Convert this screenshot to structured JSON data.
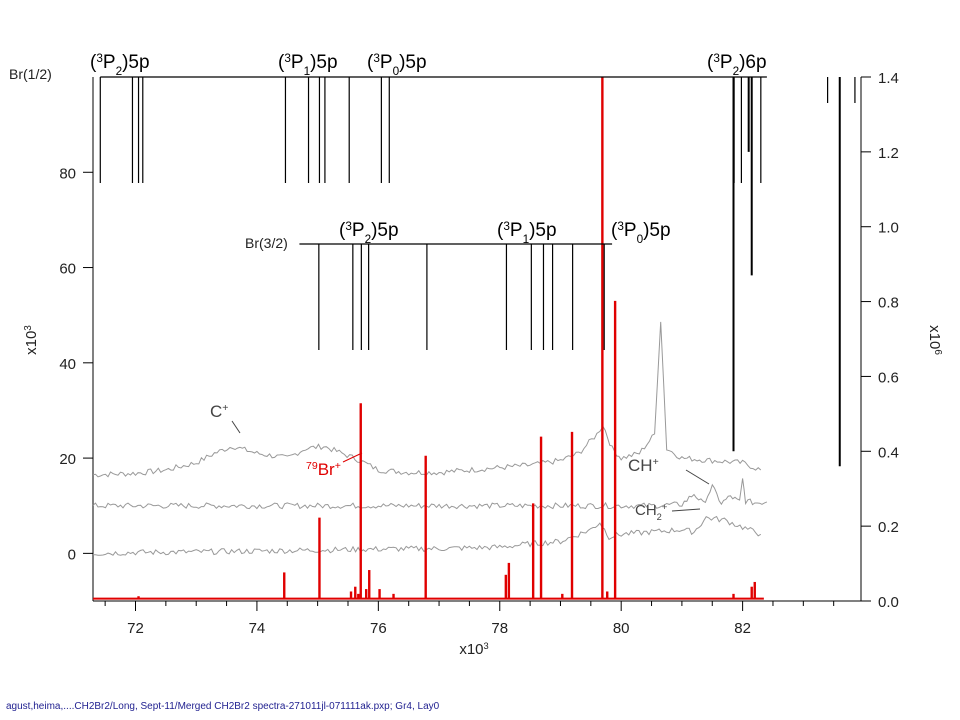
{
  "chart_data": {
    "type": "line",
    "x_axis": {
      "range": [
        71.3,
        83.95
      ],
      "ticks": [
        72,
        74,
        76,
        78,
        80,
        82
      ],
      "label": "x10",
      "label_exp": "3"
    },
    "left_axis": {
      "range": [
        -10,
        100
      ],
      "ticks": [
        0,
        20,
        40,
        60,
        80
      ],
      "label": "x10",
      "label_exp": "3"
    },
    "right_axis": {
      "range": [
        0,
        1.4
      ],
      "ticks": [
        "0.0",
        "0.2",
        "0.4",
        "0.6",
        "0.8",
        "1.0",
        "1.2",
        "1.4"
      ],
      "label": "x10",
      "label_exp": "6"
    },
    "series": [
      {
        "name": "C+",
        "color": "#999999",
        "axis": "left",
        "x": [
          71.3,
          72.0,
          72.5,
          73.0,
          73.3,
          73.6,
          74.0,
          74.5,
          74.8,
          75.1,
          75.4,
          75.7,
          76.0,
          76.5,
          77.0,
          77.5,
          78.0,
          78.5,
          79.0,
          79.3,
          79.6,
          79.7,
          79.85,
          80.0,
          80.3,
          80.55,
          80.65,
          80.75,
          81.0,
          81.5,
          82.0,
          82.3
        ],
        "y": [
          16.5,
          16.8,
          17.5,
          19,
          21,
          22.5,
          21,
          20,
          22,
          22.5,
          21,
          19.5,
          17.5,
          17,
          17,
          17.5,
          18,
          18.5,
          19.5,
          21,
          25,
          27,
          22,
          20,
          21,
          25,
          49,
          22,
          20,
          19.5,
          19,
          17.5
        ]
      },
      {
        "name": "CH+",
        "color": "#999999",
        "axis": "left",
        "x": [
          71.3,
          72.0,
          73.0,
          74.0,
          75.0,
          76.0,
          77.0,
          78.0,
          79.0,
          79.7,
          80.0,
          80.5,
          81.0,
          81.2,
          81.35,
          81.5,
          81.65,
          81.8,
          81.95,
          82.0,
          82.05,
          82.2,
          82.4
        ],
        "y": [
          10,
          10,
          10,
          10,
          10,
          10,
          10,
          10,
          10,
          10,
          10,
          10,
          10.3,
          12.5,
          10.4,
          14,
          10.5,
          12,
          10.8,
          15.5,
          11,
          10.6,
          10.8
        ]
      },
      {
        "name": "CH2+",
        "color": "#999999",
        "axis": "left",
        "x": [
          71.3,
          72.0,
          73.0,
          74.0,
          75.0,
          76.0,
          77.0,
          78.0,
          78.5,
          79.0,
          79.5,
          79.65,
          79.8,
          80.0,
          80.5,
          81.0,
          81.2,
          81.4,
          81.7,
          82.0,
          82.3
        ],
        "y": [
          0,
          0.2,
          0.3,
          0.5,
          0.7,
          0.9,
          1,
          1.3,
          2,
          2.5,
          5,
          6.5,
          3.5,
          4,
          4.5,
          5,
          4.5,
          7.5,
          7,
          5.5,
          4
        ]
      },
      {
        "name": "79Br+",
        "color": "#e00000",
        "axis": "left",
        "baseline": -9.5,
        "peaks": [
          [
            72.05,
            -9
          ],
          [
            74.45,
            -4
          ],
          [
            75.03,
            7.5
          ],
          [
            75.55,
            -8
          ],
          [
            75.62,
            -7
          ],
          [
            75.67,
            -8.5
          ],
          [
            75.71,
            31.5
          ],
          [
            75.8,
            -7.5
          ],
          [
            75.85,
            -3.5
          ],
          [
            76.02,
            -7.5
          ],
          [
            76.25,
            -8.5
          ],
          [
            76.78,
            20.5
          ],
          [
            78.1,
            -4.5
          ],
          [
            78.15,
            -2
          ],
          [
            78.55,
            10.5
          ],
          [
            78.68,
            24.5
          ],
          [
            79.03,
            -8.5
          ],
          [
            79.19,
            25.5
          ],
          [
            79.69,
            100
          ],
          [
            79.77,
            -8
          ],
          [
            79.9,
            53
          ],
          [
            81.85,
            -8.5
          ],
          [
            82.15,
            -7
          ],
          [
            82.2,
            -6
          ]
        ]
      }
    ],
    "right_series_spikes": {
      "color": "#000000",
      "axis": "right",
      "peaks": [
        [
          81.85,
          0.4
        ],
        [
          82.1,
          1.2
        ],
        [
          82.15,
          0.87
        ],
        [
          83.6,
          0.36
        ]
      ]
    },
    "br_half_series": {
      "label": "Br(1/2)",
      "groups": [
        {
          "pre": "(",
          "sup": "3",
          "main": "P",
          "sub": "2",
          "post": ")5p",
          "lines": [
            71.42,
            71.95,
            72.05,
            72.12
          ]
        },
        {
          "pre": "(",
          "sup": "3",
          "main": "P",
          "sub": "1",
          "post": ")5p",
          "lines": [
            74.47,
            74.85,
            75.03,
            75.12,
            75.52
          ]
        },
        {
          "pre": "(",
          "sup": "3",
          "main": "P",
          "sub": "0",
          "post": ")5p",
          "lines": [
            76.05,
            76.18
          ]
        },
        {
          "pre": "(",
          "sup": "3",
          "main": "P",
          "sub": "2",
          "post": ")6p",
          "lines": [
            81.86,
            81.98,
            82.3
          ]
        }
      ],
      "short_lines": [
        83.4,
        83.85
      ]
    },
    "br_three_half_series": {
      "label": "Br(3/2)",
      "groups": [
        {
          "pre": "(",
          "sup": "3",
          "main": "P",
          "sub": "2",
          "post": ")5p",
          "lines": [
            75.02,
            75.58,
            75.72,
            75.84,
            76.8
          ]
        },
        {
          "pre": "(",
          "sup": "3",
          "main": "P",
          "sub": "1",
          "post": ")5p",
          "lines": [
            78.11,
            78.52,
            78.72,
            78.87,
            79.2
          ]
        },
        {
          "pre": "(",
          "sup": "3",
          "main": "P",
          "sub": "0",
          "post": ")5p",
          "lines": [
            79.72
          ]
        }
      ]
    },
    "labels": {
      "c_plus": {
        "main": "C",
        "sup": "+"
      },
      "ch_plus": {
        "main": "CH",
        "sup": "+"
      },
      "ch2_plus": {
        "main": "CH",
        "sub": "2",
        "sup": "+"
      },
      "br79": {
        "pre_sup": "79",
        "main": "Br",
        "sup": "+"
      }
    }
  },
  "footer": "agust,heima,....CH2Br2/Long,  Sept-11/Merged CH2Br2 spectra-271011jl-071111ak.pxp;  Gr4, Lay0"
}
